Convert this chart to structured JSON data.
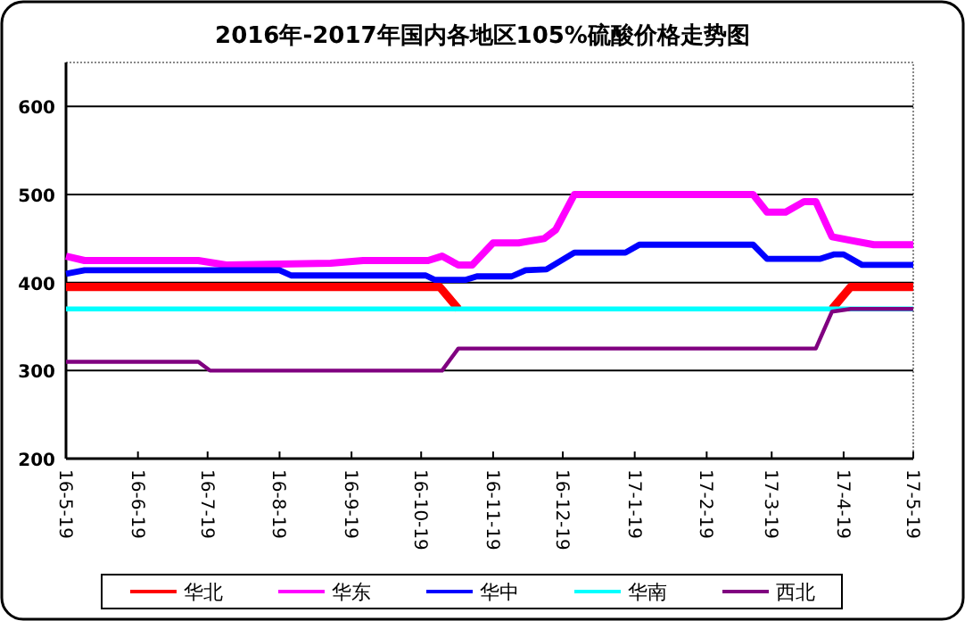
{
  "chart_data": {
    "type": "line",
    "title": "2016年-2017年国内各地区105%硫酸价格走势图",
    "xlim": [
      "2016-05-19",
      "2017-05-19"
    ],
    "xticks": [
      {
        "value": "2016-05-19",
        "label": "16-5-19"
      },
      {
        "value": "2016-06-19",
        "label": "16-6-19"
      },
      {
        "value": "2016-07-19",
        "label": "16-7-19"
      },
      {
        "value": "2016-08-19",
        "label": "16-8-19"
      },
      {
        "value": "2016-09-19",
        "label": "16-9-19"
      },
      {
        "value": "2016-10-19",
        "label": "16-10-19"
      },
      {
        "value": "2016-11-19",
        "label": "16-11-19"
      },
      {
        "value": "2016-12-19",
        "label": "16-12-19"
      },
      {
        "value": "2017-01-19",
        "label": "17-1-19"
      },
      {
        "value": "2017-02-19",
        "label": "17-2-19"
      },
      {
        "value": "2017-03-19",
        "label": "17-3-19"
      },
      {
        "value": "2017-04-19",
        "label": "17-4-19"
      },
      {
        "value": "2017-05-19",
        "label": "17-5-19"
      }
    ],
    "ylim": [
      200,
      650
    ],
    "yticks": [
      200,
      300,
      400,
      500,
      600
    ],
    "grid": "y",
    "legend": "bottom",
    "marker": "none",
    "line_style": "solid",
    "series": [
      {
        "name": "华北",
        "color": "#ff0000",
        "x": [
          "2016-05-19",
          "2016-10-27",
          "2016-11-04",
          "2016-11-05",
          "2017-04-14",
          "2017-04-22",
          "2017-05-19"
        ],
        "values": [
          395,
          395,
          370,
          null,
          370,
          395,
          395
        ]
      },
      {
        "name": "华东",
        "color": "#ff00ff",
        "x": [
          "2016-05-19",
          "2016-05-27",
          "2016-07-15",
          "2016-07-27",
          "2016-09-10",
          "2016-09-24",
          "2016-10-22",
          "2016-10-28",
          "2016-11-04",
          "2016-11-10",
          "2016-11-19",
          "2016-11-30",
          "2016-12-11",
          "2016-12-16",
          "2016-12-24",
          "2017-03-11",
          "2017-03-17",
          "2017-03-25",
          "2017-04-02",
          "2017-04-07",
          "2017-04-14",
          "2017-04-22",
          "2017-05-02",
          "2017-05-19"
        ],
        "values": [
          430,
          425,
          425,
          420,
          422,
          425,
          425,
          430,
          420,
          420,
          445,
          445,
          450,
          460,
          500,
          500,
          480,
          480,
          492,
          492,
          452,
          448,
          443,
          443
        ]
      },
      {
        "name": "华中",
        "color": "#0000ff",
        "x": [
          "2016-05-19",
          "2016-05-27",
          "2016-08-19",
          "2016-08-24",
          "2016-10-21",
          "2016-10-25",
          "2016-11-07",
          "2016-11-12",
          "2016-11-27",
          "2016-12-03",
          "2016-12-12",
          "2016-12-24",
          "2017-01-15",
          "2017-01-21",
          "2017-03-11",
          "2017-03-17",
          "2017-04-09",
          "2017-04-15",
          "2017-04-19",
          "2017-04-27",
          "2017-05-19"
        ],
        "values": [
          410,
          414,
          414,
          408,
          408,
          403,
          403,
          407,
          407,
          414,
          415,
          434,
          434,
          443,
          443,
          427,
          427,
          432,
          432,
          420,
          420
        ]
      },
      {
        "name": "华南",
        "color": "#00ffff",
        "x": [
          "2016-05-19",
          "2017-05-19"
        ],
        "values": [
          370,
          370
        ]
      },
      {
        "name": "西北",
        "color": "#800080",
        "x": [
          "2016-05-19",
          "2016-07-15",
          "2016-07-20",
          "2016-10-28",
          "2016-11-04",
          "2017-04-07",
          "2017-04-14",
          "2017-04-22",
          "2017-05-19"
        ],
        "values": [
          310,
          310,
          300,
          300,
          325,
          325,
          367,
          370,
          370
        ]
      }
    ]
  }
}
